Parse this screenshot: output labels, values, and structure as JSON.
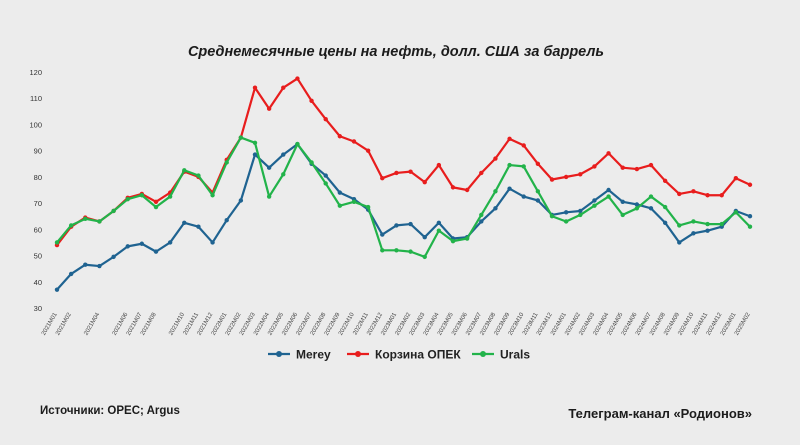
{
  "chart_data": {
    "type": "line",
    "title": "Среднемесячные цены на нефть, долл. США за баррель",
    "xlabel": "",
    "ylabel": "",
    "ylim": [
      30,
      120
    ],
    "yticks": [
      30,
      40,
      50,
      60,
      70,
      80,
      90,
      100,
      110,
      120
    ],
    "grid": false,
    "legend_position": "bottom",
    "x": [
      "2021M01",
      "2021M02",
      "2021M03",
      "2021M04",
      "2021M05",
      "2021M06",
      "2021M07",
      "2021M08",
      "2021M09",
      "2021M10",
      "2021M11",
      "2021M12",
      "2022M01",
      "2022M02",
      "2022M03",
      "2022M04",
      "2022M05",
      "2022M06",
      "2022M07",
      "2022M08",
      "2022M09",
      "2022M10",
      "2022M11",
      "2022M12",
      "2023M01",
      "2023M02",
      "2023M03",
      "2023M04",
      "2023M05",
      "2023M06",
      "2023M07",
      "2023M08",
      "2023M09",
      "2023M10",
      "2023M11",
      "2023M12",
      "2024M01",
      "2024M02",
      "2024M03",
      "2024M04",
      "2024M05",
      "2024M06",
      "2024M07",
      "2024M08",
      "2024M09",
      "2024M10",
      "2024M11",
      "2024M12",
      "2025M01",
      "2025M02"
    ],
    "xtick_labels": [
      "2021M01",
      "2021M02",
      "2021M04",
      "2021M06",
      "2021M07",
      "2021M08",
      "2021M10",
      "2021M11",
      "2021M12",
      "2022M01",
      "2022M02",
      "2022M03",
      "2022M04",
      "2022M05",
      "2022M06",
      "2022M07",
      "2022M08",
      "2022M09",
      "2022M10",
      "2022M11",
      "2022M12",
      "2023M01",
      "2023M02",
      "2023M03",
      "2023M04",
      "2023M05",
      "2023M06",
      "2023M07",
      "2023M08",
      "2023M09",
      "2023M10",
      "2023M11",
      "2023M12",
      "2024M01",
      "2024M02",
      "2024M03",
      "2024M04",
      "2024M05",
      "2024M06",
      "2024M07",
      "2024M08",
      "2024M09",
      "2024M10",
      "2024M11",
      "2024M12",
      "2025M01",
      "2025M02"
    ],
    "series": [
      {
        "name": "Merey",
        "color": "#1f6391",
        "values": [
          37,
          43,
          46.5,
          46,
          49.5,
          53.5,
          54.5,
          51.5,
          55,
          62.5,
          61,
          55,
          63.5,
          71,
          88.5,
          83.5,
          88.5,
          92.5,
          85,
          80.5,
          74,
          71.5,
          67.5,
          58,
          61.5,
          62,
          57,
          62.5,
          56.5,
          57,
          63,
          68,
          75.5,
          72.5,
          71,
          65.5,
          66.5,
          67,
          71,
          75,
          70.5,
          69.5,
          68,
          62.5,
          55,
          58.5,
          59.5,
          61,
          67,
          65
        ]
      },
      {
        "name": "Корзина ОПЕК",
        "color": "#e81d1d",
        "values": [
          54,
          61,
          64.5,
          63,
          67,
          72,
          73.5,
          70.5,
          74,
          82,
          80,
          74,
          86.5,
          95,
          114,
          106,
          114,
          117.5,
          109,
          102,
          95.5,
          93.5,
          90,
          79.5,
          81.5,
          82,
          78,
          84.5,
          76,
          75,
          81.5,
          87,
          94.5,
          92,
          85,
          79,
          80,
          81,
          84,
          89,
          83.5,
          83,
          84.5,
          78.5,
          73.5,
          74.5,
          73,
          73,
          79.5,
          77
        ]
      },
      {
        "name": "Urals",
        "color": "#22b34a",
        "values": [
          55,
          61.5,
          64,
          63,
          67,
          71.5,
          73,
          68.5,
          72.5,
          82.5,
          80.5,
          73,
          85.5,
          95,
          93,
          72.5,
          81,
          92.5,
          85.5,
          77.5,
          69,
          70.5,
          68.5,
          52,
          52,
          51.5,
          49.5,
          59.5,
          55.5,
          56.5,
          65.5,
          74.5,
          84.5,
          84,
          74.5,
          65,
          63,
          65.5,
          69,
          72.5,
          65.5,
          68,
          72.5,
          68.5,
          61.5,
          63,
          62,
          62,
          66.5,
          61
        ]
      }
    ]
  },
  "footer": {
    "source": "Источники: OPEC; Argus",
    "channel": "Телеграм-канал «Родионов»"
  }
}
